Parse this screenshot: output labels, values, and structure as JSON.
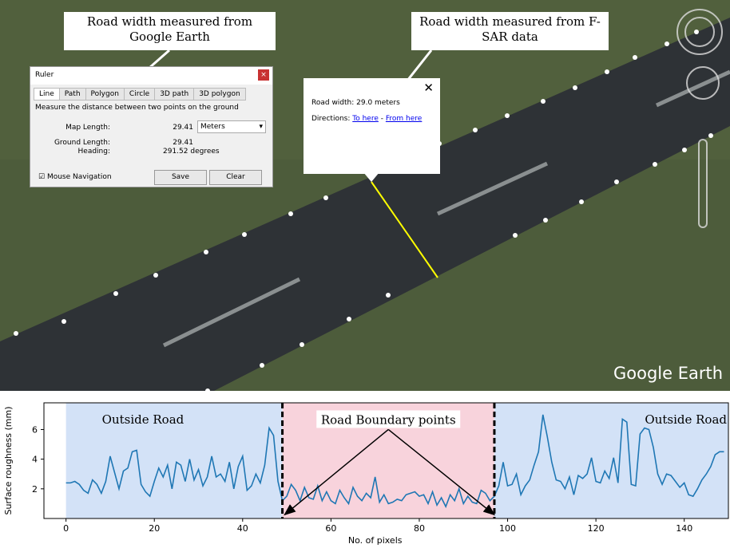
{
  "callouts": {
    "google_earth": "Road width measured from Google Earth",
    "fsar": "Road width measured from F-SAR data"
  },
  "ruler": {
    "title": "Ruler",
    "tabs": [
      "Line",
      "Path",
      "Polygon",
      "Circle",
      "3D path",
      "3D polygon"
    ],
    "description": "Measure the distance between two points on the ground",
    "map_length_label": "Map Length:",
    "map_length": "29.41",
    "unit": "Meters",
    "ground_length_label": "Ground Length:",
    "ground_length": "29.41",
    "heading_label": "Heading:",
    "heading": "291.52 degrees",
    "mouse_navigation": "Mouse Navigation",
    "save": "Save",
    "clear": "Clear"
  },
  "popup": {
    "road_width": "Road width: 29.0 meters",
    "directions": "Directions:",
    "to_here": "To here",
    "separator": "-",
    "from_here": "From here"
  },
  "watermark": "Google Earth",
  "chart_data": {
    "type": "line",
    "xlabel": "No. of pixels",
    "ylabel": "Surface roughness (mm)",
    "color": "#1f77b4",
    "x": [
      0,
      1,
      2,
      3,
      4,
      5,
      6,
      7,
      8,
      9,
      10,
      11,
      12,
      13,
      14,
      15,
      16,
      17,
      18,
      19,
      20,
      21,
      22,
      23,
      24,
      25,
      26,
      27,
      28,
      29,
      30,
      31,
      32,
      33,
      34,
      35,
      36,
      37,
      38,
      39,
      40,
      41,
      42,
      43,
      44,
      45,
      46,
      47,
      48,
      49,
      50,
      51,
      52,
      53,
      54,
      55,
      56,
      57,
      58,
      59,
      60,
      61,
      62,
      63,
      64,
      65,
      66,
      67,
      68,
      69,
      70,
      71,
      72,
      73,
      74,
      75,
      76,
      77,
      78,
      79,
      80,
      81,
      82,
      83,
      84,
      85,
      86,
      87,
      88,
      89,
      90,
      91,
      92,
      93,
      94,
      95,
      96,
      97,
      98,
      99,
      100,
      101,
      102,
      103,
      104,
      105,
      106,
      107,
      108,
      109,
      110,
      111,
      112,
      113,
      114,
      115,
      116,
      117,
      118,
      119,
      120,
      121,
      122,
      123,
      124,
      125,
      126,
      127,
      128,
      129,
      130,
      131,
      132,
      133,
      134,
      135,
      136,
      137,
      138,
      139,
      140,
      141,
      142,
      143,
      144,
      145,
      146,
      147,
      148,
      149
    ],
    "values": [
      2.4,
      2.4,
      2.5,
      2.3,
      1.9,
      1.7,
      2.6,
      2.3,
      1.7,
      2.5,
      4.2,
      3.1,
      2.0,
      3.2,
      3.4,
      4.5,
      4.6,
      2.3,
      1.8,
      1.5,
      2.5,
      3.4,
      2.8,
      3.6,
      2.0,
      3.8,
      3.6,
      2.5,
      4.0,
      2.6,
      3.3,
      2.2,
      2.8,
      4.2,
      2.8,
      3.0,
      2.5,
      3.8,
      2.0,
      3.5,
      4.2,
      1.9,
      2.2,
      3.0,
      2.4,
      3.6,
      6.1,
      5.6,
      2.5,
      1.2,
      1.5,
      2.3,
      1.9,
      1.2,
      2.1,
      1.4,
      1.3,
      2.2,
      1.2,
      1.8,
      1.2,
      1.0,
      1.9,
      1.4,
      1.0,
      2.1,
      1.5,
      1.2,
      1.7,
      1.4,
      2.8,
      1.1,
      1.6,
      1.0,
      1.1,
      1.3,
      1.2,
      1.6,
      1.7,
      1.8,
      1.5,
      1.6,
      1.0,
      1.8,
      0.9,
      1.4,
      0.8,
      1.6,
      1.2,
      2.0,
      1.0,
      1.5,
      1.1,
      1.0,
      1.9,
      1.7,
      1.2,
      1.5,
      2.2,
      3.8,
      2.2,
      2.3,
      3.0,
      1.6,
      2.2,
      2.6,
      3.6,
      4.5,
      7.0,
      5.5,
      3.8,
      2.6,
      2.5,
      2.0,
      2.8,
      1.6,
      2.9,
      2.7,
      3.0,
      4.1,
      2.5,
      2.4,
      3.2,
      2.7,
      4.1,
      2.4,
      6.7,
      6.5,
      2.3,
      2.2,
      5.7,
      6.1,
      6.0,
      4.8,
      3.0,
      2.3,
      3.0,
      2.9,
      2.5,
      2.1,
      2.4,
      1.6,
      1.5,
      2.0,
      2.6,
      3.0,
      3.5,
      4.3,
      4.5,
      4.5
    ],
    "xlim": [
      -5,
      150
    ],
    "ylim": [
      0,
      7.8
    ],
    "xticks": [
      0,
      20,
      40,
      60,
      80,
      100,
      120,
      140
    ],
    "yticks": [
      2,
      4,
      6
    ],
    "regions": [
      {
        "label": "Outside Road",
        "from": 0,
        "to": 49,
        "color": "#d3e2f7"
      },
      {
        "from": 49,
        "to": 97,
        "color": "#f8d3dc"
      },
      {
        "label": "Outside Road",
        "from": 97,
        "to": 150,
        "color": "#d3e2f7"
      }
    ],
    "boundaries": [
      49,
      97
    ],
    "annotation": {
      "text": "Road Boundary points",
      "from": [
        73,
        6.0
      ],
      "to": [
        [
          49.5,
          0.25
        ],
        [
          97,
          0.25
        ]
      ]
    }
  }
}
